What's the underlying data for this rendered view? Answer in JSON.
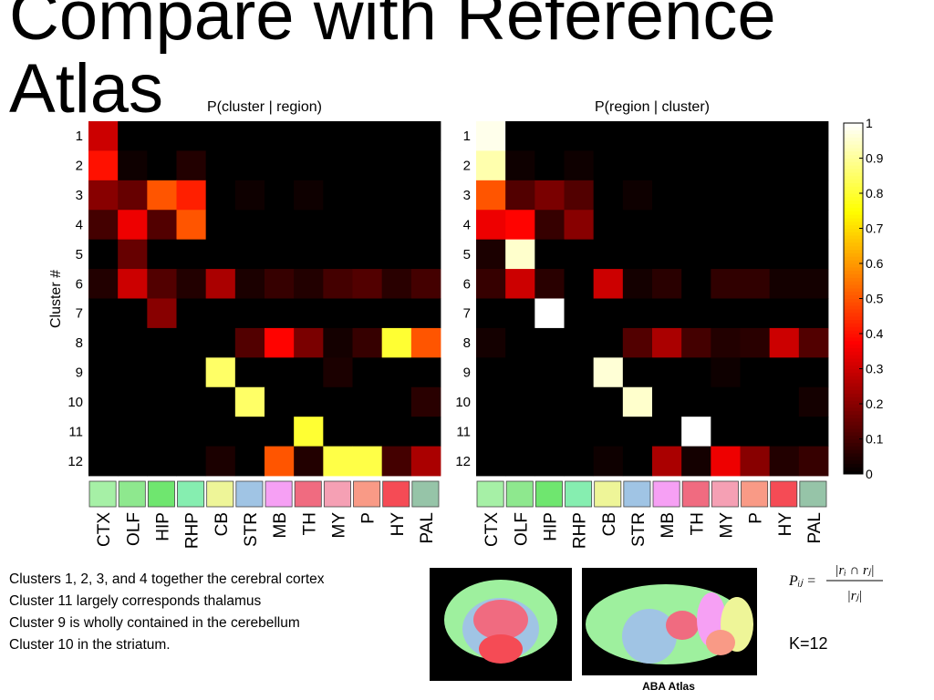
{
  "title": "Compare with Reference Atlas",
  "chart_data": [
    {
      "type": "heatmap",
      "title": "P(cluster | region)",
      "ylabel": "Cluster #",
      "x_categories": [
        "CTX",
        "OLF",
        "HIP",
        "RHP",
        "CB",
        "STR",
        "MB",
        "TH",
        "MY",
        "P",
        "HY",
        "PAL"
      ],
      "y_categories": [
        "1",
        "2",
        "3",
        "4",
        "5",
        "6",
        "7",
        "8",
        "9",
        "10",
        "11",
        "12"
      ],
      "values": [
        [
          0.3,
          0,
          0,
          0,
          0,
          0,
          0,
          0,
          0,
          0,
          0,
          0
        ],
        [
          0.4,
          0.02,
          0,
          0.05,
          0,
          0,
          0,
          0,
          0,
          0,
          0,
          0
        ],
        [
          0.2,
          0.15,
          0.5,
          0.42,
          0,
          0.02,
          0,
          0.02,
          0,
          0,
          0,
          0
        ],
        [
          0.1,
          0.35,
          0.12,
          0.5,
          0,
          0,
          0,
          0,
          0,
          0,
          0,
          0
        ],
        [
          0,
          0.15,
          0,
          0,
          0,
          0,
          0,
          0,
          0,
          0,
          0,
          0
        ],
        [
          0.05,
          0.3,
          0.12,
          0.05,
          0.25,
          0.04,
          0.08,
          0.05,
          0.1,
          0.12,
          0.06,
          0.1
        ],
        [
          0,
          0,
          0.2,
          0,
          0,
          0,
          0,
          0,
          0,
          0,
          0,
          0
        ],
        [
          0,
          0,
          0,
          0,
          0,
          0.12,
          0.38,
          0.18,
          0.03,
          0.08,
          0.8,
          0.5
        ],
        [
          0,
          0,
          0,
          0,
          0.85,
          0,
          0,
          0,
          0.04,
          0,
          0,
          0
        ],
        [
          0,
          0,
          0,
          0,
          0,
          0.85,
          0,
          0,
          0,
          0,
          0,
          0.06
        ],
        [
          0,
          0,
          0,
          0,
          0,
          0,
          0,
          0.8,
          0,
          0,
          0,
          0
        ],
        [
          0,
          0,
          0,
          0,
          0.04,
          0,
          0.5,
          0.05,
          0.82,
          0.82,
          0.1,
          0.25
        ]
      ]
    },
    {
      "type": "heatmap",
      "title": "P(region | cluster)",
      "x_categories": [
        "CTX",
        "OLF",
        "HIP",
        "RHP",
        "CB",
        "STR",
        "MB",
        "TH",
        "MY",
        "P",
        "HY",
        "PAL"
      ],
      "y_categories": [
        "1",
        "2",
        "3",
        "4",
        "5",
        "6",
        "7",
        "8",
        "9",
        "10",
        "11",
        "12"
      ],
      "values": [
        [
          0.98,
          0,
          0,
          0,
          0,
          0,
          0,
          0,
          0,
          0,
          0,
          0
        ],
        [
          0.92,
          0.02,
          0,
          0.02,
          0,
          0,
          0,
          0,
          0,
          0,
          0,
          0
        ],
        [
          0.5,
          0.12,
          0.18,
          0.12,
          0,
          0.02,
          0,
          0,
          0,
          0,
          0,
          0
        ],
        [
          0.35,
          0.38,
          0.08,
          0.2,
          0,
          0,
          0,
          0,
          0,
          0,
          0,
          0
        ],
        [
          0.04,
          0.95,
          0,
          0,
          0,
          0,
          0,
          0,
          0,
          0,
          0,
          0
        ],
        [
          0.08,
          0.3,
          0.06,
          0,
          0.3,
          0.03,
          0.06,
          0,
          0.07,
          0.07,
          0.03,
          0.03
        ],
        [
          0,
          0,
          1,
          0,
          0,
          0,
          0,
          0,
          0,
          0,
          0,
          0
        ],
        [
          0.03,
          0,
          0,
          0,
          0,
          0.12,
          0.25,
          0.1,
          0.05,
          0.06,
          0.3,
          0.12
        ],
        [
          0,
          0,
          0,
          0,
          0.96,
          0,
          0,
          0,
          0.02,
          0,
          0,
          0
        ],
        [
          0,
          0,
          0,
          0,
          0,
          0.95,
          0,
          0,
          0,
          0,
          0,
          0.03
        ],
        [
          0,
          0,
          0,
          0,
          0,
          0,
          0,
          1,
          0,
          0,
          0,
          0
        ],
        [
          0,
          0,
          0,
          0,
          0.02,
          0,
          0.25,
          0.03,
          0.35,
          0.2,
          0.05,
          0.08
        ]
      ]
    }
  ],
  "colorbar": {
    "ylim": [
      0,
      1
    ],
    "yticks": [
      0,
      0.1,
      0.2,
      0.3,
      0.4,
      0.5,
      0.6,
      0.7,
      0.8,
      0.9,
      1
    ],
    "colormap": "hot"
  },
  "region_colors": [
    "#a6f0a6",
    "#8ee88e",
    "#6fe66f",
    "#86eeb0",
    "#eef598",
    "#a0c4e4",
    "#f6a0f4",
    "#f06b80",
    "#f5a0b4",
    "#f99a86",
    "#f54b55",
    "#96c4a8"
  ],
  "notes": [
    "Clusters 1, 2, 3, and 4 together the cerebral cortex",
    "Cluster 11 largely corresponds thalamus",
    "Cluster 9 is wholly contained in the cerebellum",
    "Cluster 10 in the striatum."
  ],
  "formula": {
    "lhs": "Pᵢⱼ =",
    "numerator": "|rᵢ ∩ rⱼ|",
    "denominator": "|rⱼ|"
  },
  "k_label": "K=12",
  "atlas_caption": "ABA Atlas"
}
